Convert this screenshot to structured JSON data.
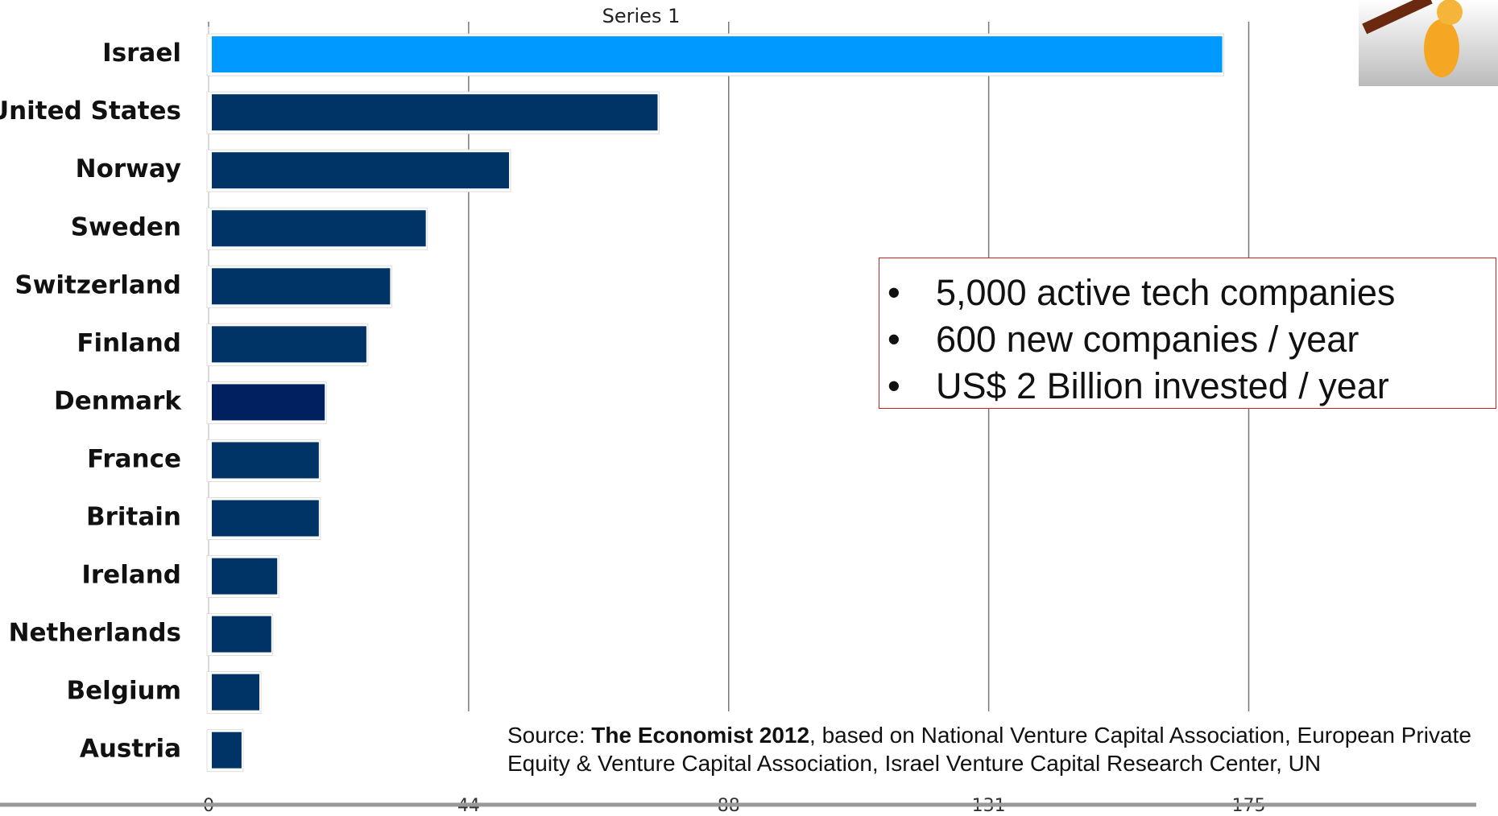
{
  "chart_data": {
    "type": "bar",
    "orientation": "horizontal",
    "categories": [
      "Israel",
      "United States",
      "Norway",
      "Sweden",
      "Switzerland",
      "Finland",
      "Denmark",
      "France",
      "Britain",
      "Ireland",
      "Netherlands",
      "Belgium",
      "Austria"
    ],
    "series": [
      {
        "name": "Series 1",
        "colors": [
          "#0099ff",
          "#003366",
          "#003366",
          "#003366",
          "#003366",
          "#003366",
          "#002060",
          "#003366",
          "#003366",
          "#003366",
          "#003366",
          "#003366",
          "#003366"
        ],
        "values": [
          170,
          75,
          50,
          36,
          30,
          26,
          19,
          18,
          18,
          11,
          10,
          8,
          5
        ]
      }
    ],
    "xlim": [
      0,
      218.75
    ],
    "xticks": [
      0,
      {
        "value": 43.75,
        "label": "44"
      },
      {
        "value": 87.5,
        "label": "88"
      },
      {
        "value": 131.25,
        "label": "131"
      },
      175
    ],
    "grid": true
  },
  "callout": {
    "bullets": [
      "5,000 active tech companies",
      "600 new companies / year",
      "US$ 2 Billion invested / year"
    ]
  },
  "source": {
    "prefix": "Source:",
    "bold": "The Economist 2012",
    "rest": ", based on National Venture Capital Association, European Private Equity & Venture Capital Association, Israel Venture Capital Research Center, UN"
  }
}
